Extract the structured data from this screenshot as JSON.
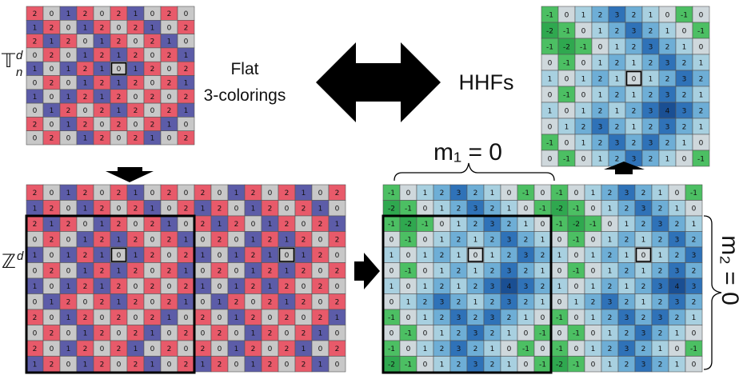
{
  "labels": {
    "torus_symbol": "𝕋",
    "torus_sup": "d",
    "torus_sub": "n",
    "z_symbol": "ℤ",
    "z_sup": "d",
    "flat_line1": "Flat",
    "flat_line2": "3-colorings",
    "hhfs": "HHFs",
    "m1": "m₁ = 0",
    "m2": "m₂ = 0"
  },
  "colors": {
    "coloring": {
      "0": "#c8c8c8",
      "1": "#5c5ca8",
      "2": "#e85a6a"
    },
    "height": {
      "-2": "#2fa84f",
      "-1": "#4cbf63",
      "0": "#cfd8dc",
      "1": "#a8d0e0",
      "2": "#6eaed6",
      "3": "#2f72b8",
      "4": "#1a4f93"
    }
  },
  "coloring_grid": [
    [
      "2",
      "0",
      "1",
      "2",
      "0",
      "2",
      "1",
      "0",
      "2",
      "0"
    ],
    [
      "1",
      "2",
      "0",
      "1",
      "2",
      "0",
      "2",
      "1",
      "0",
      "2"
    ],
    [
      "2",
      "1",
      "2",
      "0",
      "1",
      "2",
      "0",
      "2",
      "1",
      "0"
    ],
    [
      "0",
      "2",
      "0",
      "1",
      "2",
      "1",
      "2",
      "0",
      "2",
      "1"
    ],
    [
      "1",
      "0",
      "1",
      "2",
      "1",
      "0",
      "1",
      "2",
      "0",
      "2"
    ],
    [
      "0",
      "2",
      "0",
      "1",
      "2",
      "1",
      "2",
      "0",
      "2",
      "1"
    ],
    [
      "1",
      "0",
      "1",
      "2",
      "1",
      "2",
      "0",
      "2",
      "0",
      "2"
    ],
    [
      "0",
      "1",
      "2",
      "0",
      "2",
      "1",
      "2",
      "0",
      "2",
      "1"
    ],
    [
      "2",
      "0",
      "1",
      "2",
      "0",
      "2",
      "0",
      "2",
      "1",
      "0"
    ],
    [
      "0",
      "2",
      "0",
      "1",
      "2",
      "0",
      "2",
      "1",
      "0",
      "2"
    ]
  ],
  "height_grid": [
    [
      "-1",
      "0",
      "1",
      "2",
      "3",
      "2",
      "1",
      "0",
      "-1",
      "0"
    ],
    [
      "-2",
      "-1",
      "0",
      "1",
      "2",
      "3",
      "2",
      "1",
      "0",
      "-1"
    ],
    [
      "-1",
      "-2",
      "-1",
      "0",
      "1",
      "2",
      "3",
      "2",
      "1",
      "0"
    ],
    [
      "0",
      "-1",
      "0",
      "1",
      "2",
      "1",
      "2",
      "3",
      "2",
      "1"
    ],
    [
      "1",
      "0",
      "1",
      "2",
      "1",
      "0",
      "1",
      "2",
      "3",
      "2"
    ],
    [
      "0",
      "-1",
      "0",
      "1",
      "2",
      "1",
      "2",
      "3",
      "2",
      "1"
    ],
    [
      "1",
      "0",
      "1",
      "2",
      "1",
      "2",
      "3",
      "4",
      "3",
      "2"
    ],
    [
      "0",
      "1",
      "2",
      "3",
      "2",
      "1",
      "2",
      "3",
      "2",
      "1"
    ],
    [
      "-1",
      "0",
      "1",
      "2",
      "3",
      "2",
      "3",
      "2",
      "1",
      "0"
    ],
    [
      "0",
      "-1",
      "0",
      "1",
      "2",
      "3",
      "2",
      "1",
      "0",
      "-1"
    ]
  ],
  "highlight_cell": {
    "row": 4,
    "col": 5
  }
}
